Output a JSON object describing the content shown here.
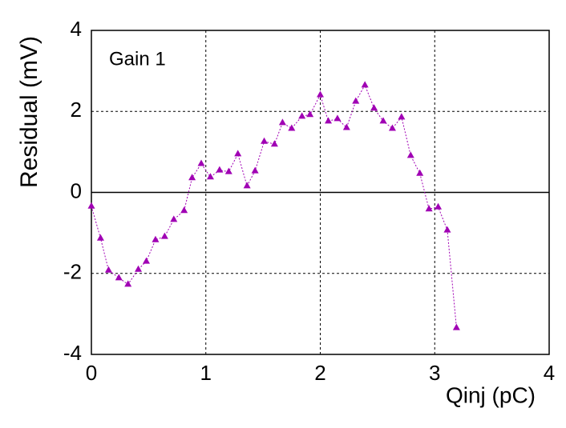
{
  "chart_data": {
    "type": "scatter",
    "annotation": "Gain 1",
    "xlabel": "Qinj (pC)",
    "ylabel": "Residual (mV)",
    "xlim": [
      0,
      4
    ],
    "ylim": [
      -4,
      4
    ],
    "xticks": [
      0,
      1,
      2,
      3,
      4
    ],
    "yticks": [
      -4,
      -2,
      0,
      2,
      4
    ],
    "grid": true,
    "zero_line": true,
    "series": [
      {
        "color": "#a000b4",
        "x": [
          0,
          0.08,
          0.15,
          0.24,
          0.32,
          0.41,
          0.48,
          0.56,
          0.64,
          0.72,
          0.81,
          0.88,
          0.96,
          1.04,
          1.12,
          1.2,
          1.28,
          1.36,
          1.43,
          1.51,
          1.6,
          1.67,
          1.75,
          1.84,
          1.91,
          2.0,
          2.07,
          2.15,
          2.23,
          2.31,
          2.39,
          2.47,
          2.55,
          2.63,
          2.71,
          2.79,
          2.87,
          2.95,
          3.03,
          3.11,
          3.19
        ],
        "values": [
          -0.34,
          -1.13,
          -1.92,
          -2.11,
          -2.27,
          -1.9,
          -1.7,
          -1.17,
          -1.09,
          -0.67,
          -0.45,
          0.36,
          0.71,
          0.38,
          0.55,
          0.51,
          0.95,
          0.16,
          0.53,
          1.26,
          1.19,
          1.72,
          1.58,
          1.88,
          1.92,
          2.41,
          1.76,
          1.82,
          1.6,
          2.25,
          2.65,
          2.08,
          1.76,
          1.58,
          1.86,
          0.91,
          0.47,
          -0.41,
          -0.36,
          -0.93,
          -3.34
        ]
      }
    ]
  }
}
